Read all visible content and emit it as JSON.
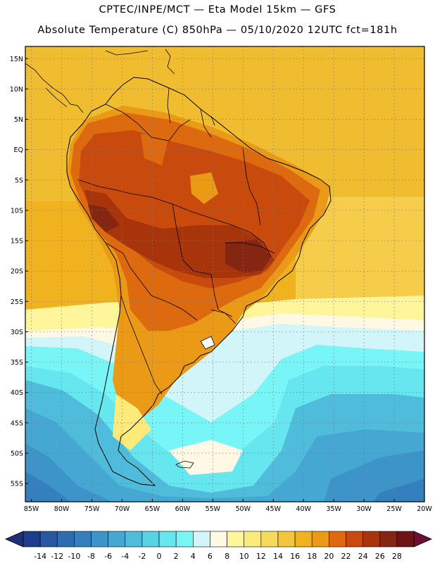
{
  "header": {
    "line1": "CPTEC/INPE/MCT —  Eta Model 15km — GFS",
    "line2": "Absolute Temperature (C) 850hPa — 05/10/2020 12UTC fct=181h"
  },
  "axes": {
    "latitudes": [
      {
        "label": "15N",
        "value": 15
      },
      {
        "label": "10N",
        "value": 10
      },
      {
        "label": "5N",
        "value": 5
      },
      {
        "label": "EQ",
        "value": 0
      },
      {
        "label": "5S",
        "value": -5
      },
      {
        "label": "10S",
        "value": -10
      },
      {
        "label": "15S",
        "value": -15
      },
      {
        "label": "20S",
        "value": -20
      },
      {
        "label": "25S",
        "value": -25
      },
      {
        "label": "30S",
        "value": -30
      },
      {
        "label": "35S",
        "value": -35
      },
      {
        "label": "40S",
        "value": -40
      },
      {
        "label": "45S",
        "value": -45
      },
      {
        "label": "50S",
        "value": -50
      },
      {
        "label": "55S",
        "value": -55
      }
    ],
    "longitudes": [
      {
        "label": "85W",
        "value": -85
      },
      {
        "label": "80W",
        "value": -80
      },
      {
        "label": "75W",
        "value": -75
      },
      {
        "label": "70W",
        "value": -70
      },
      {
        "label": "65W",
        "value": -65
      },
      {
        "label": "60W",
        "value": -60
      },
      {
        "label": "55W",
        "value": -55
      },
      {
        "label": "50W",
        "value": -50
      },
      {
        "label": "45W",
        "value": -45
      },
      {
        "label": "40W",
        "value": -40
      },
      {
        "label": "35W",
        "value": -35
      },
      {
        "label": "30W",
        "value": -30
      },
      {
        "label": "25W",
        "value": -25
      },
      {
        "label": "20W",
        "value": -20
      }
    ],
    "lat_range": [
      -58,
      17
    ],
    "lon_range": [
      -86,
      -20
    ]
  },
  "colorbar": {
    "labels": [
      "-14",
      "-12",
      "-10",
      "-8",
      "-6",
      "-4",
      "-2",
      "0",
      "2",
      "4",
      "6",
      "8",
      "10",
      "12",
      "14",
      "16",
      "18",
      "20",
      "22",
      "24",
      "26",
      "28"
    ],
    "colors": [
      "#1e3c8c",
      "#2a57a2",
      "#2e6cb0",
      "#347fbe",
      "#3c94c8",
      "#45a8d2",
      "#4fbcdc",
      "#5ad2e6",
      "#66e6ef",
      "#78f5f7",
      "#d2f5fa",
      "#fff8e4",
      "#fff59a",
      "#fcea7a",
      "#f7d95c",
      "#f3c640",
      "#f0b21e",
      "#eb9a17",
      "#de6a0f",
      "#c84a0c",
      "#a8340b",
      "#852612",
      "#6e1216"
    ],
    "low_color": "#1e2f7a",
    "high_color": "#6a1030"
  },
  "legend_colors": {
    "cold_ocean": "#4fbcdc",
    "warm_ocean": "#f0b21e",
    "hot_land": "#c84a0c"
  }
}
